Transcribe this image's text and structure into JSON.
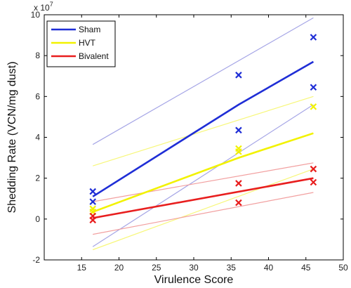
{
  "chart_data": {
    "type": "scatter",
    "xlabel": "Virulence Score",
    "ylabel": "Shedding Rate (VCN/mg dust)",
    "exponent_label": "x 10",
    "exponent_power": "7",
    "xlim": [
      10,
      50
    ],
    "ylim": [
      -2,
      10
    ],
    "xticks": [
      15,
      20,
      25,
      30,
      35,
      40,
      45,
      50
    ],
    "yticks": [
      -2,
      0,
      2,
      4,
      6,
      8,
      10
    ],
    "grid": false,
    "legend_position": "top-left",
    "series": [
      {
        "name": "Sham",
        "color": "#1f2ed6",
        "light_color": "#a6a6e6",
        "points": [
          [
            16.5,
            1.35
          ],
          [
            16.5,
            0.85
          ],
          [
            36,
            7.05
          ],
          [
            36,
            4.35
          ],
          [
            46,
            8.9
          ],
          [
            46,
            6.45
          ]
        ],
        "fit": [
          [
            16.5,
            1.1
          ],
          [
            36,
            5.6
          ],
          [
            46,
            7.7
          ]
        ],
        "upper": [
          [
            16.5,
            3.65
          ],
          [
            46,
            9.85
          ]
        ],
        "lower": [
          [
            16.5,
            -1.35
          ],
          [
            46,
            5.6
          ]
        ]
      },
      {
        "name": "HVT",
        "color": "#f2f200",
        "light_color": "#f7f77a",
        "points": [
          [
            16.5,
            0.5
          ],
          [
            16.5,
            0.35
          ],
          [
            36,
            3.45
          ],
          [
            36,
            3.3
          ],
          [
            46,
            5.5
          ]
        ],
        "fit": [
          [
            16.5,
            0.35
          ],
          [
            36,
            3.0
          ],
          [
            46,
            4.2
          ]
        ],
        "upper": [
          [
            16.5,
            2.6
          ],
          [
            46,
            6.0
          ]
        ],
        "lower": [
          [
            16.5,
            -1.5
          ],
          [
            46,
            2.45
          ]
        ]
      },
      {
        "name": "Bivalent",
        "color": "#e81e1e",
        "light_color": "#f2a0a0",
        "points": [
          [
            16.5,
            0.15
          ],
          [
            16.5,
            -0.05
          ],
          [
            36,
            1.75
          ],
          [
            36,
            0.8
          ],
          [
            46,
            2.45
          ],
          [
            46,
            1.8
          ]
        ],
        "fit": [
          [
            16.5,
            0.05
          ],
          [
            46,
            2.0
          ]
        ],
        "upper": [
          [
            16.5,
            0.85
          ],
          [
            46,
            2.75
          ]
        ],
        "lower": [
          [
            16.5,
            -0.75
          ],
          [
            46,
            1.3
          ]
        ]
      }
    ]
  }
}
